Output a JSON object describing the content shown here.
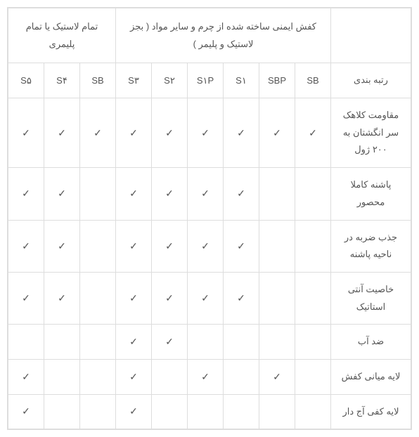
{
  "groups": {
    "leather": "کفش ایمنی ساخته شده از چرم و سایر مواد ( بجز لاستیک و پلیمر )",
    "rubber": "تمام لاستیک یا تمام پلیمری"
  },
  "row_label_header": "رتبه بندی",
  "columns": [
    "SB",
    "SBP",
    "S۱",
    "S۱P",
    "S۲",
    "S۳",
    "SB",
    "S۴",
    "S۵"
  ],
  "rows": [
    {
      "label": "مقاومت کلاهک سر انگشتان به ۲۰۰ ژول",
      "checks": [
        true,
        true,
        true,
        true,
        true,
        true,
        true,
        true,
        true
      ]
    },
    {
      "label": "پاشنه کاملا محصور",
      "checks": [
        false,
        false,
        true,
        true,
        true,
        true,
        false,
        true,
        true
      ]
    },
    {
      "label": "جذب ضربه در ناحیه پاشنه",
      "checks": [
        false,
        false,
        true,
        true,
        true,
        true,
        false,
        true,
        true
      ]
    },
    {
      "label": "خاصیت آنتی استاتیک",
      "checks": [
        false,
        false,
        true,
        true,
        true,
        true,
        false,
        true,
        true
      ]
    },
    {
      "label": "ضد آب",
      "checks": [
        false,
        false,
        false,
        false,
        true,
        true,
        false,
        false,
        false
      ]
    },
    {
      "label": "لایه میانی کفش",
      "checks": [
        false,
        true,
        false,
        true,
        false,
        true,
        false,
        false,
        true
      ]
    },
    {
      "label": "لایه کفی آج دار",
      "checks": [
        false,
        false,
        false,
        false,
        false,
        true,
        false,
        false,
        true
      ]
    }
  ],
  "check_glyph": "✓"
}
